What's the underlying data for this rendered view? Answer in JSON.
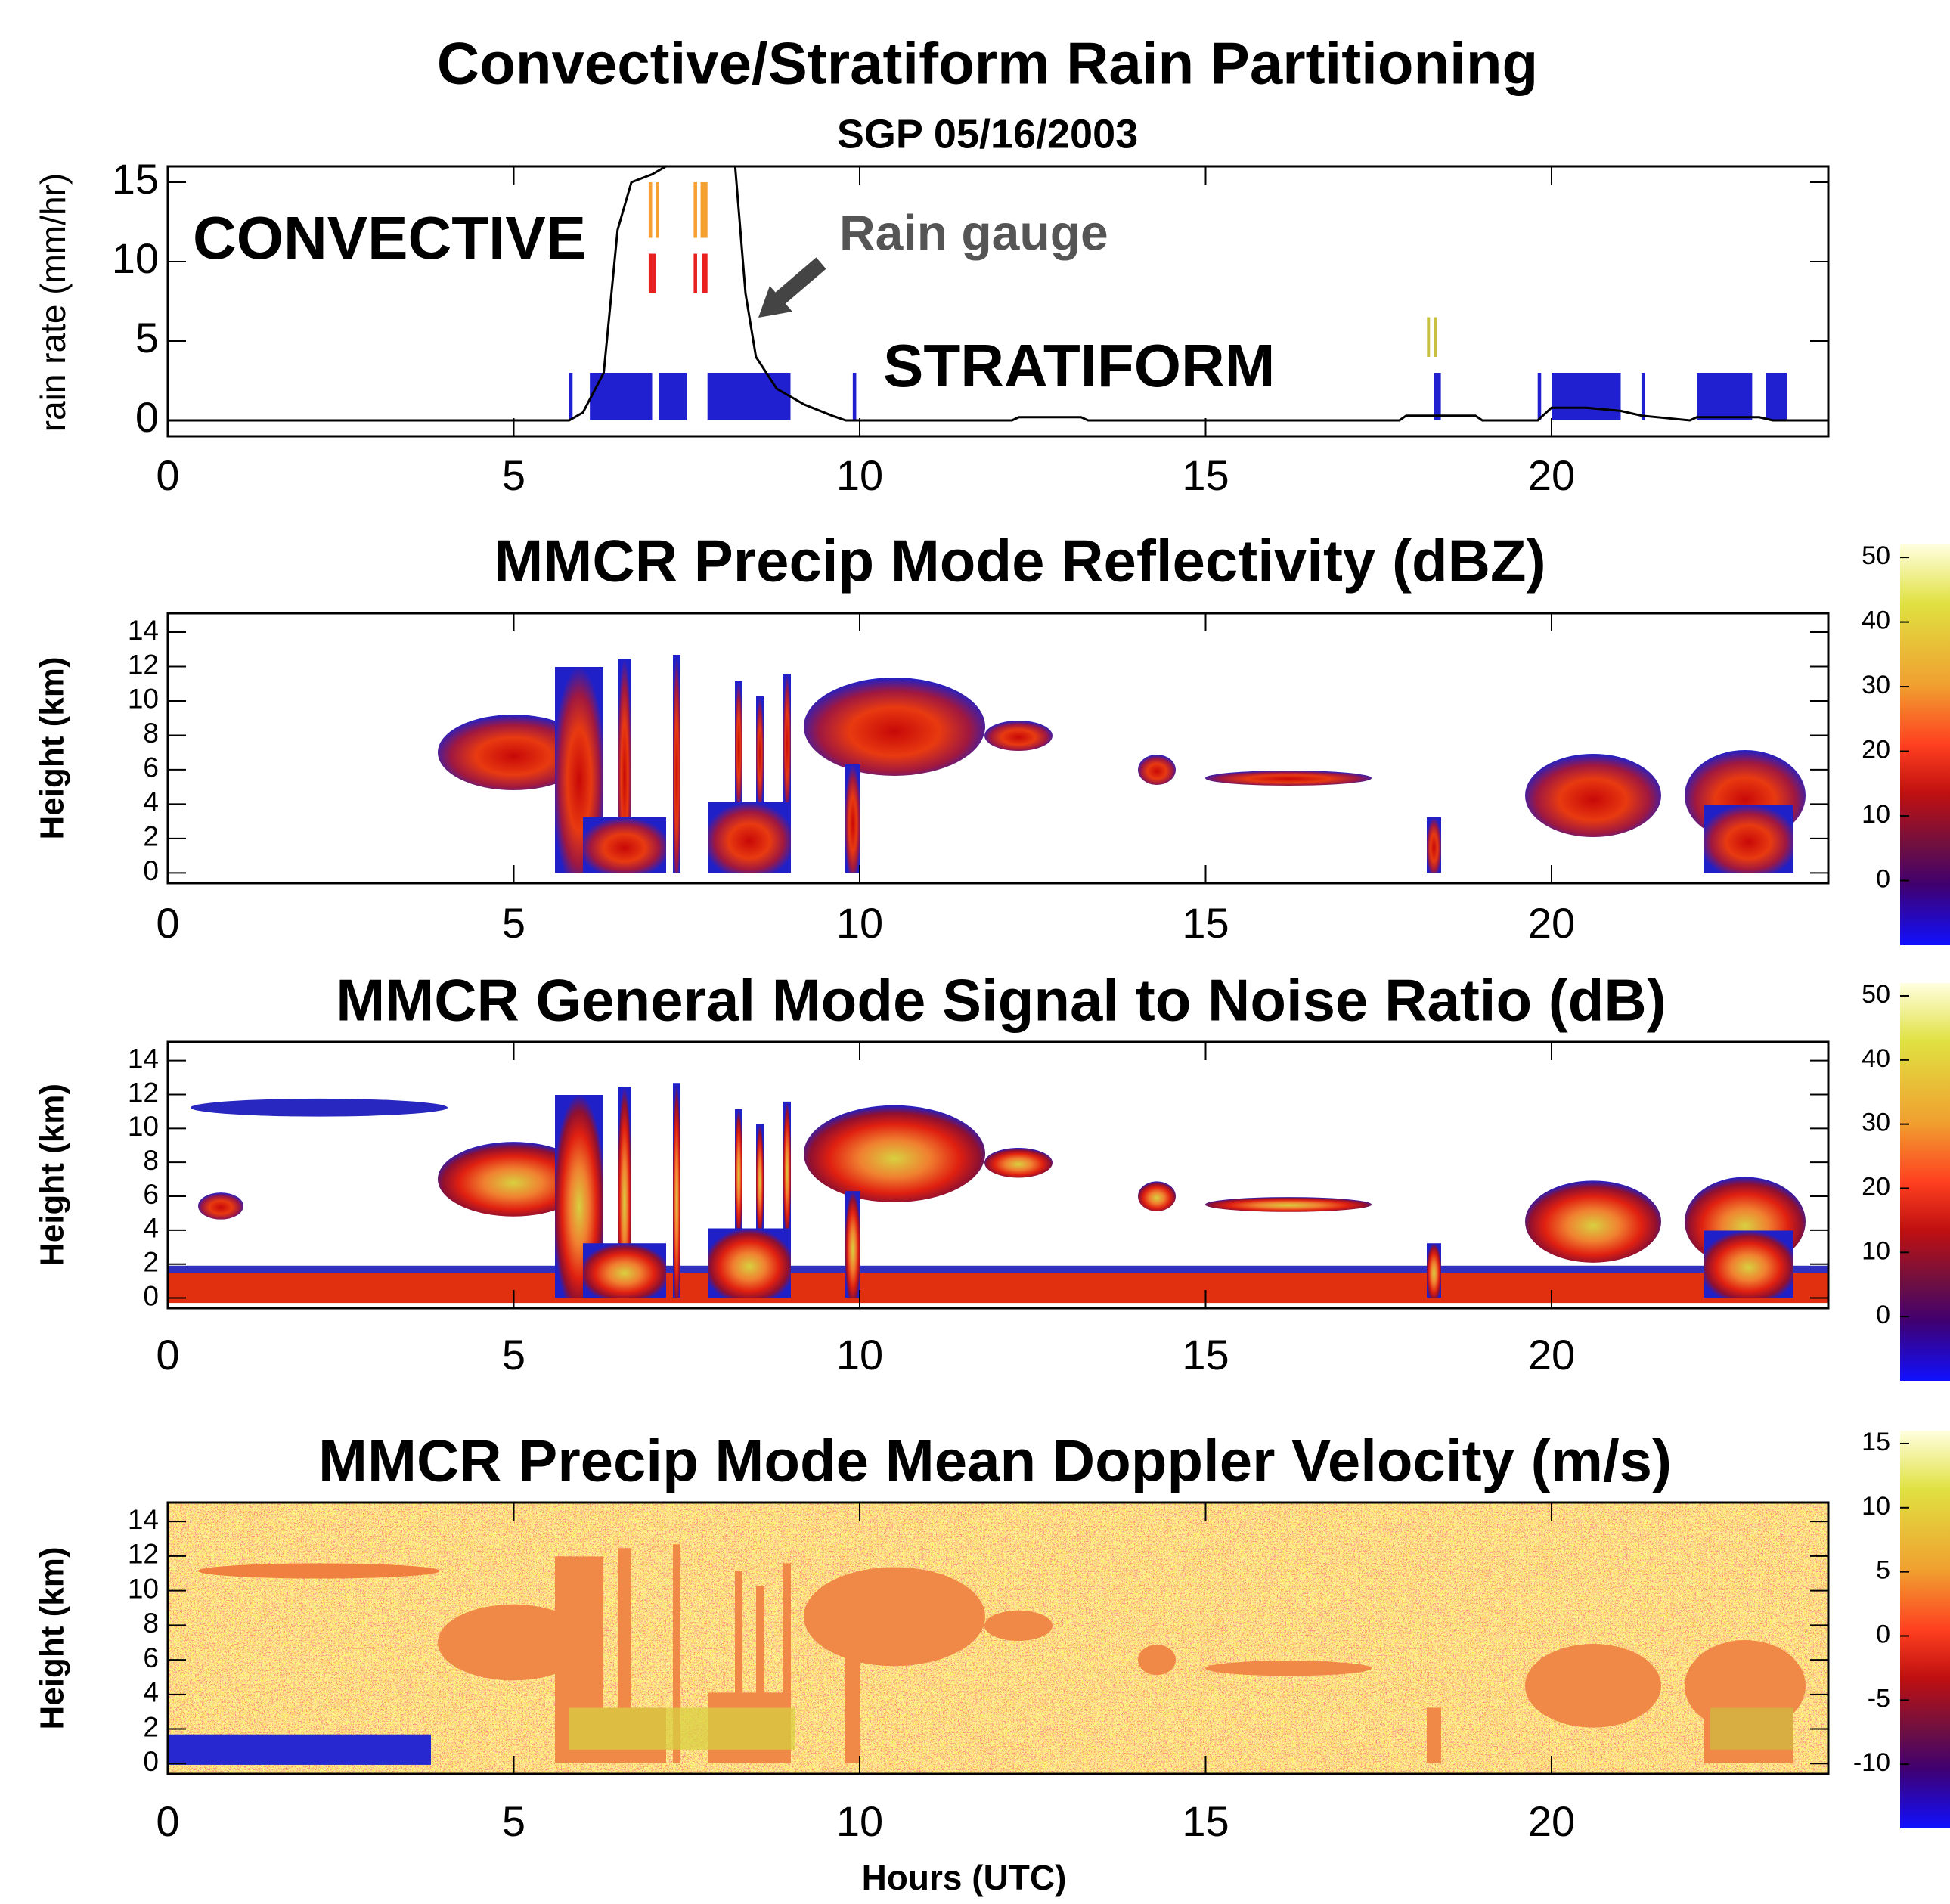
{
  "chart_data": [
    {
      "type": "line",
      "title": "Convective/Stratiform Rain Partitioning",
      "subtitle": "SGP 05/16/2003",
      "y_label": "rain rate (mm/hr)",
      "xlim": [
        0,
        24
      ],
      "xticks": [
        0,
        5,
        10,
        15,
        20
      ],
      "ylim": [
        -1,
        16
      ],
      "yticks": [
        0,
        5,
        10,
        15
      ],
      "series": [
        {
          "name": "Rain gauge",
          "color": "#000000",
          "x": [
            0,
            5.8,
            6.0,
            6.3,
            6.5,
            6.7,
            7.0,
            7.2,
            8.2,
            8.35,
            8.5,
            8.8,
            9.2,
            9.6,
            9.8,
            10,
            12.2,
            12.3,
            13.2,
            13.3,
            17.8,
            17.9,
            18.9,
            19,
            19.8,
            20,
            20.5,
            21,
            21.3,
            22,
            22.1,
            23,
            23.2,
            24
          ],
          "values": [
            0,
            0,
            0.5,
            3,
            12,
            15,
            15.5,
            16,
            16,
            8,
            4,
            2,
            1,
            0.3,
            0,
            0,
            0,
            0.2,
            0.2,
            0,
            0,
            0.3,
            0.3,
            0,
            0,
            0.8,
            0.8,
            0.6,
            0.3,
            0,
            0.2,
            0.2,
            0,
            0
          ]
        }
      ],
      "events": [
        {
          "color": "#2020d0",
          "y": [
            0,
            3
          ],
          "spans": [
            [
              5.8,
              5.85
            ],
            [
              6.1,
              7.0
            ],
            [
              7.1,
              7.5
            ],
            [
              7.8,
              9.0
            ],
            [
              9.9,
              9.95
            ],
            [
              18.3,
              18.4
            ],
            [
              19.8,
              19.85
            ],
            [
              20.0,
              21.0
            ],
            [
              21.3,
              21.35
            ],
            [
              22.1,
              22.9
            ],
            [
              23.1,
              23.4
            ]
          ]
        },
        {
          "color": "#f5a030",
          "y": [
            11.5,
            15
          ],
          "spans": [
            [
              6.95,
              7.0
            ],
            [
              7.05,
              7.1
            ],
            [
              7.6,
              7.65
            ],
            [
              7.7,
              7.8
            ]
          ]
        },
        {
          "color": "#e82020",
          "y": [
            8,
            10.5
          ],
          "spans": [
            [
              6.95,
              7.05
            ],
            [
              7.6,
              7.65
            ],
            [
              7.72,
              7.8
            ]
          ]
        },
        {
          "color": "#c8c040",
          "y": [
            4,
            6.5
          ],
          "spans": [
            [
              18.2,
              18.23
            ],
            [
              18.3,
              18.33
            ]
          ]
        }
      ],
      "annotations": [
        {
          "text": "CONVECTIVE",
          "color": "#f08020"
        },
        {
          "text": "STRATIFORM",
          "color": "#2c2cb8"
        }
      ]
    },
    {
      "type": "heatmap",
      "title": "MMCR Precip Mode Reflectivity (dBZ)",
      "y_label": "Height (km)",
      "xlim": [
        0,
        24
      ],
      "xticks": [
        0,
        5,
        10,
        15,
        20
      ],
      "ylim": [
        -0.6,
        15.1
      ],
      "yticks": [
        0,
        2,
        4,
        6,
        8,
        10,
        12,
        14
      ],
      "colorbar": {
        "lim": [
          -10,
          52
        ],
        "ticks": [
          0,
          10,
          20,
          30,
          40,
          50
        ]
      }
    },
    {
      "type": "heatmap",
      "title": "MMCR General Mode Signal to Noise Ratio (dB)",
      "y_label": "Height (km)",
      "xlim": [
        0,
        24
      ],
      "xticks": [
        0,
        5,
        10,
        15,
        20
      ],
      "ylim": [
        -0.6,
        15.1
      ],
      "yticks": [
        0,
        2,
        4,
        6,
        8,
        10,
        12,
        14
      ],
      "colorbar": {
        "lim": [
          -10,
          52
        ],
        "ticks": [
          0,
          10,
          20,
          30,
          40,
          50
        ]
      }
    },
    {
      "type": "heatmap",
      "title": "MMCR Precip Mode Mean Doppler Velocity (m/s)",
      "y_label": "Height (km)",
      "x_label": "Hours (UTC)",
      "xlim": [
        0,
        24
      ],
      "xticks": [
        0,
        5,
        10,
        15,
        20
      ],
      "ylim": [
        -0.6,
        15.1
      ],
      "yticks": [
        0,
        2,
        4,
        6,
        8,
        10,
        12,
        14
      ],
      "colorbar": {
        "lim": [
          -15,
          16
        ],
        "ticks": [
          -10,
          -5,
          0,
          5,
          10,
          15
        ]
      }
    }
  ]
}
